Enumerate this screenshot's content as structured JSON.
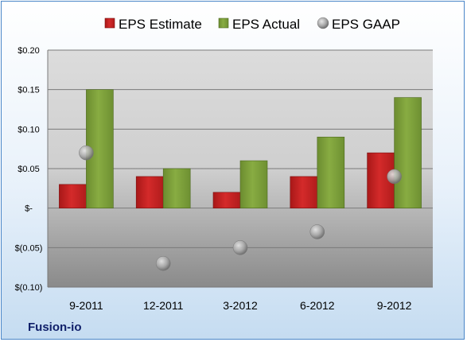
{
  "company": "Fusion-io",
  "colors": {
    "estimate": "#d42a2a",
    "actual": "#88ac42",
    "gaap": "#a9a9a9",
    "plot_top": "#dcdcdc",
    "plot_bottom": "#8a8a8a"
  },
  "chart_data": {
    "type": "bar",
    "title": "",
    "xlabel": "",
    "ylabel": "",
    "categories": [
      "9-2011",
      "12-2011",
      "3-2012",
      "6-2012",
      "9-2012"
    ],
    "series": [
      {
        "name": "EPS Estimate",
        "kind": "bar",
        "values": [
          0.03,
          0.04,
          0.02,
          0.04,
          0.07
        ]
      },
      {
        "name": "EPS Actual",
        "kind": "bar",
        "values": [
          0.15,
          0.05,
          0.06,
          0.09,
          0.14
        ]
      },
      {
        "name": "EPS GAAP",
        "kind": "scatter",
        "values": [
          0.07,
          -0.07,
          -0.05,
          -0.03,
          0.04
        ]
      }
    ],
    "ylim": [
      -0.1,
      0.2
    ],
    "yticks": [
      0.2,
      0.15,
      0.1,
      0.05,
      0.0,
      -0.05,
      -0.1
    ],
    "ytick_labels": [
      "$0.20",
      "$0.15",
      "$0.10",
      "$0.05",
      "$-",
      "$(0.05)",
      "$(0.10)"
    ],
    "grid": true,
    "legend": "top"
  }
}
